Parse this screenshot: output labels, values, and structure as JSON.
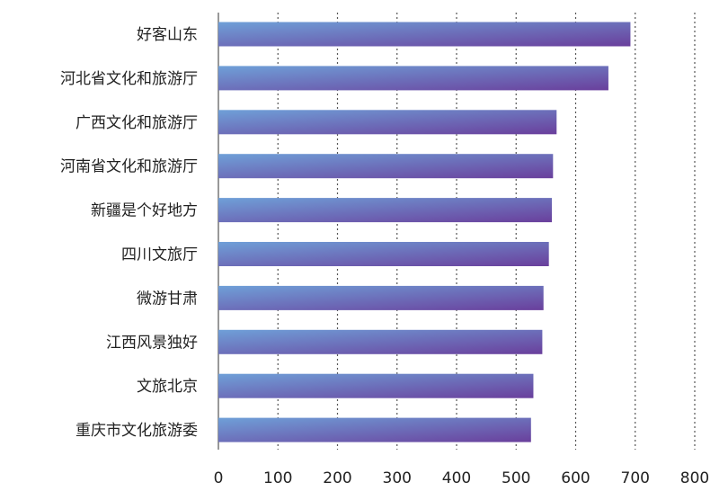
{
  "chart_data": {
    "type": "bar",
    "orientation": "horizontal",
    "categories": [
      "好客山东",
      "河北省文化和旅游厅",
      "广西文化和旅游厅",
      "河南省文化和旅游厅",
      "新疆是个好地方",
      "四川文旅厅",
      "微游甘肃",
      "江西风景独好",
      "文旅北京",
      "重庆市文化旅游委"
    ],
    "values": [
      692,
      655,
      568,
      562,
      560,
      555,
      546,
      544,
      529,
      525
    ],
    "xlim": [
      0,
      800
    ],
    "xticks": [
      "0",
      "100",
      "200",
      "300",
      "400",
      "500",
      "600",
      "700",
      "800"
    ],
    "grid": "vertical dotted",
    "title": "",
    "xlabel": "",
    "ylabel": ""
  },
  "colors": {
    "bar_gradient_start": "#6fa0d8",
    "bar_gradient_end": "#6a3f9c",
    "grid": "#555555",
    "text": "#222222"
  }
}
